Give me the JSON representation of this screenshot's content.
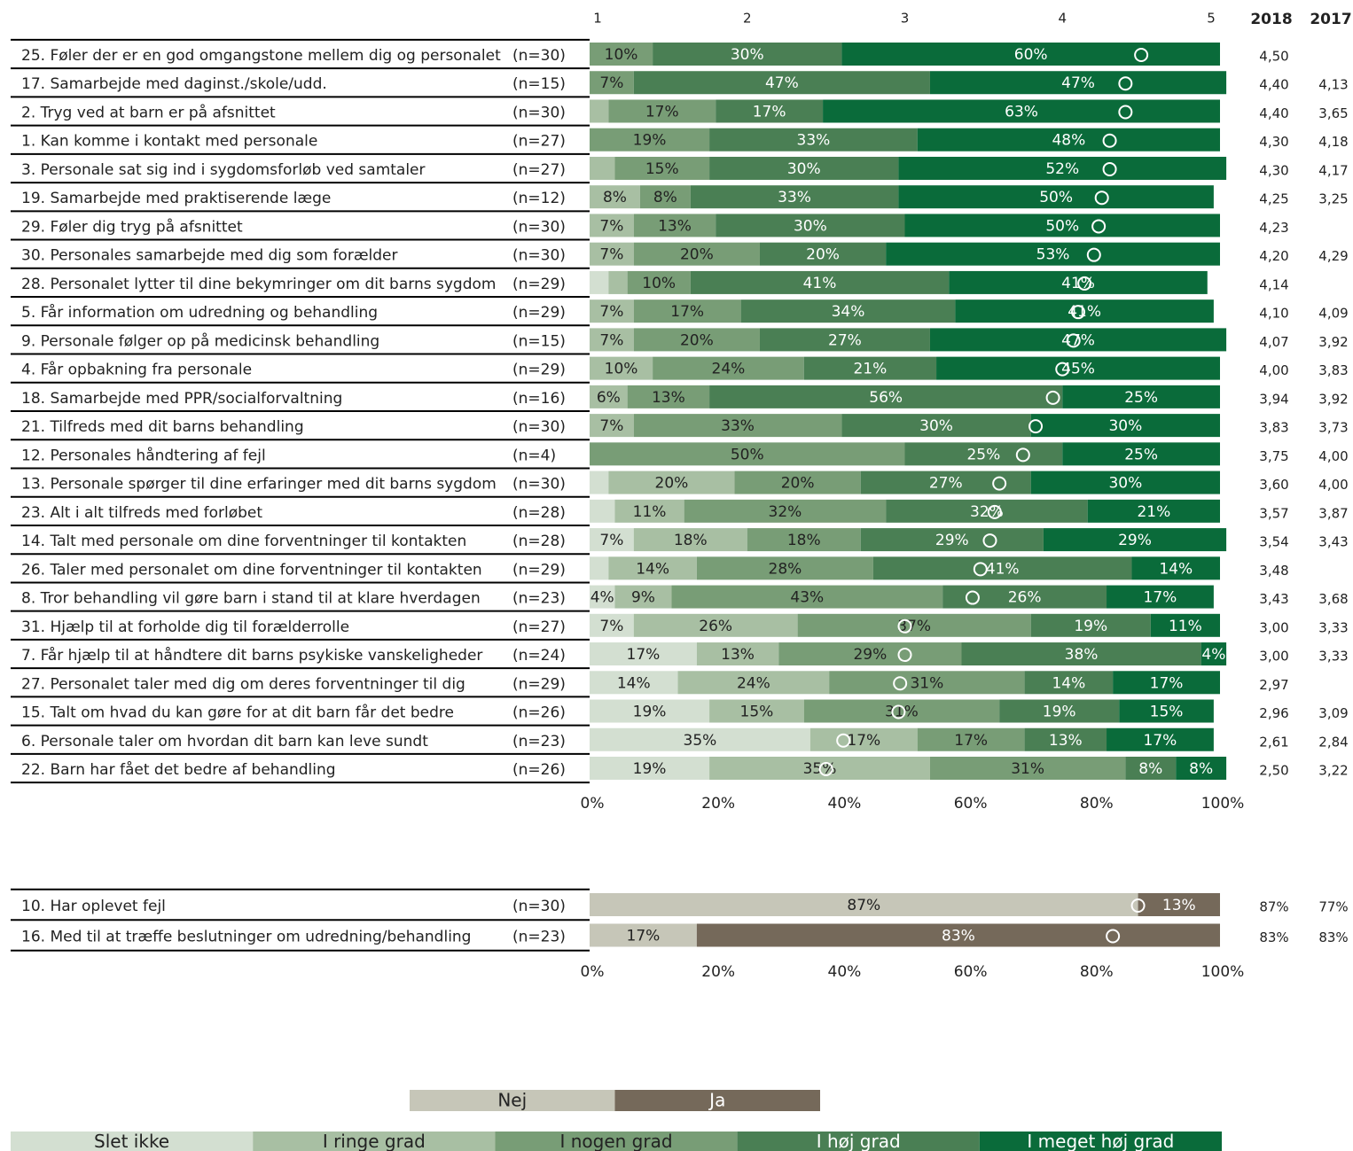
{
  "chart_data": [
    {
      "type": "stacked_bar_h",
      "categories": [
        "25. Føler der er en god omgangstone mellem dig og personalet",
        "17. Samarbejde med daginst./skole/udd.",
        "2. Tryg ved at barn er på afsnittet",
        "1. Kan komme i kontakt med personale",
        "3. Personale sat sig ind i sygdomsforløb ved samtaler",
        "19. Samarbejde med praktiserende læge",
        "29. Føler dig tryg på afsnittet",
        "30. Personales samarbejde med dig som forælder",
        "28. Personalet lytter til dine bekymringer om dit barns sygdom",
        "5. Får information om udredning og behandling",
        "9. Personale følger op på medicinsk behandling",
        "4. Får opbakning fra personale",
        "18. Samarbejde med PPR/socialforvaltning",
        "21. Tilfreds med dit barns behandling",
        "12. Personales håndtering af fejl",
        "13. Personale spørger til dine erfaringer med dit barns sygdom",
        "23. Alt i alt tilfreds med forløbet",
        "14. Talt med personale om dine forventninger til kontakten",
        "26. Taler med personalet om dine forventninger til kontakten",
        "8. Tror behandling vil gøre barn i stand til at klare hverdagen",
        "31. Hjælp til at forholde dig til forælderrolle",
        "7. Får hjælp til at håndtere dit barns psykiske vanskeligheder",
        "27. Personalet taler med dig om deres forventninger til dig",
        "15. Talt om hvad du kan gøre for at dit barn får det bedre",
        "6. Personale taler om hvordan dit barn kan leve sundt",
        "22. Barn har fået det bedre af behandling"
      ],
      "n_labels": [
        "(n=30)",
        "(n=15)",
        "(n=30)",
        "(n=27)",
        "(n=27)",
        "(n=12)",
        "(n=30)",
        "(n=30)",
        "(n=29)",
        "(n=29)",
        "(n=15)",
        "(n=29)",
        "(n=16)",
        "(n=30)",
        "(n=4)",
        "(n=30)",
        "(n=28)",
        "(n=28)",
        "(n=29)",
        "(n=23)",
        "(n=27)",
        "(n=24)",
        "(n=29)",
        "(n=26)",
        "(n=23)",
        "(n=26)"
      ],
      "series": [
        {
          "name": "Slet ikke",
          "color": "#d3dfd1",
          "text_color": "#222222",
          "values": [
            0,
            0,
            0,
            0,
            0,
            0,
            0,
            0,
            3,
            0,
            0,
            0,
            0,
            0,
            0,
            3,
            4,
            7,
            3,
            4,
            7,
            17,
            14,
            19,
            35,
            19
          ],
          "value_labels": [
            null,
            null,
            null,
            null,
            null,
            null,
            null,
            null,
            null,
            null,
            null,
            null,
            null,
            null,
            null,
            null,
            null,
            "7%",
            null,
            "4%",
            "7%",
            "17%",
            "14%",
            "19%",
            "35%",
            "19%"
          ]
        },
        {
          "name": "I ringe grad",
          "color": "#a8bfa3",
          "text_color": "#222222",
          "values": [
            0,
            0,
            3,
            0,
            4,
            8,
            7,
            7,
            3,
            7,
            7,
            10,
            6,
            7,
            0,
            20,
            11,
            18,
            14,
            9,
            26,
            13,
            24,
            15,
            17,
            35
          ],
          "value_labels": [
            null,
            null,
            null,
            null,
            null,
            "8%",
            "7%",
            "7%",
            null,
            "7%",
            "7%",
            "10%",
            "6%",
            "7%",
            null,
            "20%",
            "11%",
            "18%",
            "14%",
            "9%",
            "26%",
            "13%",
            "24%",
            "15%",
            "17%",
            "35%"
          ]
        },
        {
          "name": "I nogen grad",
          "color": "#789d76",
          "text_color": "#222222",
          "values": [
            10,
            7,
            17,
            19,
            15,
            8,
            13,
            20,
            10,
            17,
            20,
            24,
            13,
            33,
            50,
            20,
            32,
            18,
            28,
            43,
            37,
            29,
            31,
            31,
            17,
            31
          ],
          "value_labels": [
            "10%",
            "7%",
            "17%",
            "19%",
            "15%",
            "8%",
            "13%",
            "20%",
            "10%",
            "17%",
            "20%",
            "24%",
            "13%",
            "33%",
            "50%",
            "20%",
            "32%",
            "18%",
            "28%",
            "43%",
            "37%",
            "29%",
            "31%",
            "31%",
            "17%",
            "31%"
          ]
        },
        {
          "name": "I høj grad",
          "color": "#4a7f54",
          "text_color": "#ffffff",
          "values": [
            30,
            47,
            17,
            33,
            30,
            33,
            30,
            20,
            41,
            34,
            27,
            21,
            56,
            30,
            25,
            27,
            32,
            29,
            41,
            26,
            19,
            38,
            14,
            19,
            13,
            8
          ],
          "value_labels": [
            "30%",
            "47%",
            "17%",
            "33%",
            "30%",
            "33%",
            "30%",
            "20%",
            "41%",
            "34%",
            "27%",
            "21%",
            "56%",
            "30%",
            "25%",
            "27%",
            "32%",
            "29%",
            "41%",
            "26%",
            "19%",
            "38%",
            "14%",
            "19%",
            "13%",
            "8%"
          ]
        },
        {
          "name": "I meget høj grad",
          "color": "#0a6b3a",
          "text_color": "#ffffff",
          "values": [
            60,
            47,
            63,
            48,
            52,
            50,
            50,
            53,
            41,
            41,
            47,
            45,
            25,
            30,
            25,
            30,
            21,
            29,
            14,
            17,
            11,
            4,
            17,
            15,
            17,
            8
          ],
          "value_labels": [
            "60%",
            "47%",
            "63%",
            "48%",
            "52%",
            "50%",
            "50%",
            "53%",
            "41%",
            "41%",
            "47%",
            "45%",
            "25%",
            "30%",
            "25%",
            "30%",
            "21%",
            "29%",
            "14%",
            "17%",
            "11%",
            "4%",
            "17%",
            "15%",
            "17%",
            "8%"
          ]
        }
      ],
      "columns": [
        {
          "name": "2018",
          "values": [
            4.5,
            4.4,
            4.4,
            4.3,
            4.3,
            4.25,
            4.23,
            4.2,
            4.14,
            4.1,
            4.07,
            4.0,
            3.94,
            3.83,
            3.75,
            3.6,
            3.57,
            3.54,
            3.48,
            3.43,
            3.0,
            3.0,
            2.97,
            2.96,
            2.61,
            2.5
          ],
          "value_labels": [
            "4,50",
            "4,40",
            "4,40",
            "4,30",
            "4,30",
            "4,25",
            "4,23",
            "4,20",
            "4,14",
            "4,10",
            "4,07",
            "4,00",
            "3,94",
            "3,83",
            "3,75",
            "3,60",
            "3,57",
            "3,54",
            "3,48",
            "3,43",
            "3,00",
            "3,00",
            "2,97",
            "2,96",
            "2,61",
            "2,50"
          ]
        },
        {
          "name": "2017",
          "values": [
            null,
            4.13,
            3.65,
            4.18,
            4.17,
            3.25,
            null,
            4.29,
            null,
            4.09,
            3.92,
            3.83,
            3.92,
            3.73,
            4.0,
            4.0,
            3.87,
            3.43,
            null,
            3.68,
            3.33,
            3.33,
            null,
            3.09,
            2.84,
            3.22
          ],
          "value_labels": [
            null,
            "4,13",
            "3,65",
            "4,18",
            "4,17",
            "3,25",
            null,
            "4,29",
            null,
            "4,09",
            "3,92",
            "3,83",
            "3,92",
            "3,73",
            "4,00",
            "4,00",
            "3,87",
            "3,43",
            null,
            "3,68",
            "3,33",
            "3,33",
            null,
            "3,09",
            "2,84",
            "3,22"
          ]
        }
      ],
      "marker_axis": "x2",
      "xlim": [
        0,
        100
      ],
      "xticks": [
        {
          "value": 0,
          "label": "0%"
        },
        {
          "value": 20,
          "label": "20%"
        },
        {
          "value": 40,
          "label": "40%"
        },
        {
          "value": 60,
          "label": "60%"
        },
        {
          "value": 80,
          "label": "80%"
        },
        {
          "value": 100,
          "label": "100%"
        }
      ],
      "x2lim": [
        1,
        5
      ],
      "x2ticks": [
        1,
        2,
        3,
        4,
        5
      ]
    },
    {
      "type": "stacked_bar_h",
      "categories": [
        "10. Har oplevet fejl",
        "16. Med til at træffe beslutninger om udredning/behandling"
      ],
      "n_labels": [
        "(n=30)",
        "(n=23)"
      ],
      "series": [
        {
          "name": "Nej",
          "color": "#c6c6b8",
          "text_color": "#222222",
          "values": [
            87,
            17
          ],
          "value_labels": [
            "87%",
            "17%"
          ]
        },
        {
          "name": "Ja",
          "color": "#75695a",
          "text_color": "#ffffff",
          "values": [
            13,
            83
          ],
          "value_labels": [
            "13%",
            "83%"
          ]
        }
      ],
      "columns": [
        {
          "values": [
            87,
            83
          ],
          "value_labels": [
            "87%",
            "83%"
          ]
        },
        {
          "values": [
            77,
            83
          ],
          "value_labels": [
            "77%",
            "83%"
          ]
        }
      ],
      "marker_axis": "x",
      "xlim": [
        0,
        100
      ],
      "xticks": [
        {
          "value": 0,
          "label": "0%"
        },
        {
          "value": 20,
          "label": "20%"
        },
        {
          "value": 40,
          "label": "40%"
        },
        {
          "value": 60,
          "label": "60%"
        },
        {
          "value": 80,
          "label": "80%"
        },
        {
          "value": 100,
          "label": "100%"
        }
      ]
    }
  ]
}
